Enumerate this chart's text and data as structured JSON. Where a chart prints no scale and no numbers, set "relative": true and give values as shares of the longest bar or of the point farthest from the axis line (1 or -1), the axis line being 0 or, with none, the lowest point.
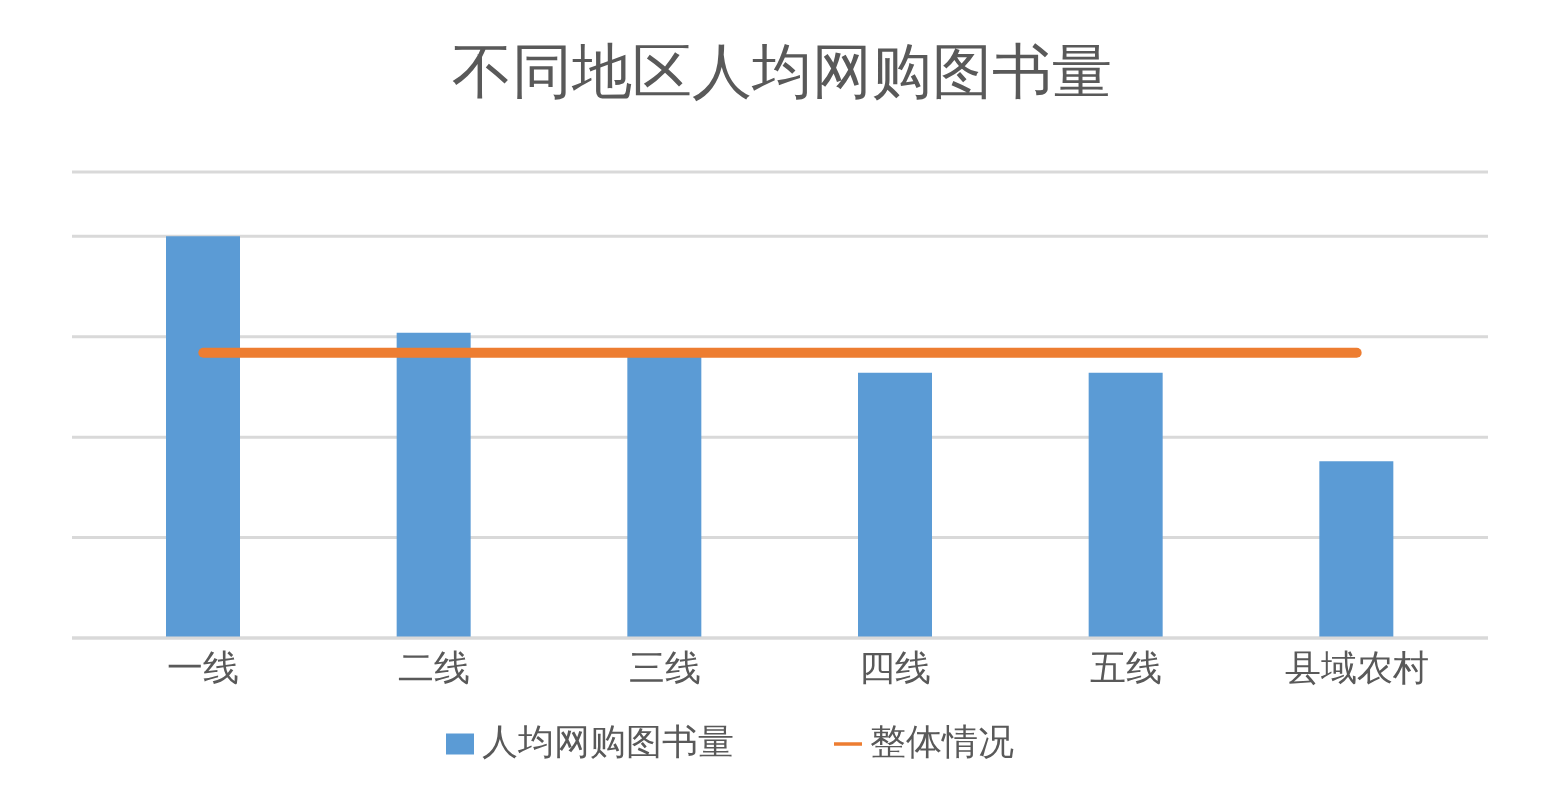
{
  "chart_data": {
    "type": "bar",
    "title": "不同地区人均网购图书量",
    "relative": true,
    "grid": "y",
    "legend": "bottom",
    "categories": [
      "一线",
      "二线",
      "三线",
      "四线",
      "五线",
      "县域农村"
    ],
    "series": [
      {
        "name": "人均网购图书量",
        "color": "#5b9bd5",
        "values": [
          1,
          0.76,
          0.7,
          0.66,
          0.66,
          0.44
        ]
      },
      {
        "name": "整体情况",
        "type": "line",
        "color": "#ed7d31",
        "values": [
          0.71,
          0.71,
          0.71,
          0.71,
          0.71,
          0.71
        ]
      }
    ]
  }
}
